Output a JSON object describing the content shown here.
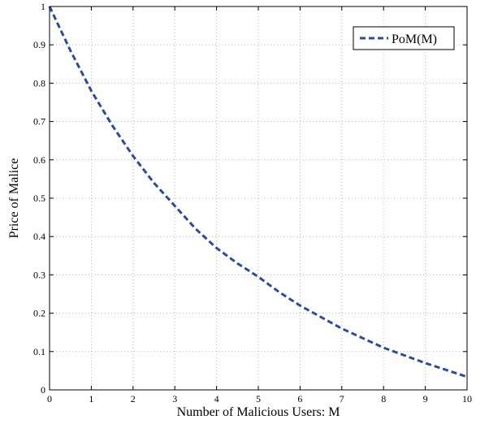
{
  "chart_data": {
    "type": "line",
    "title": "",
    "xlabel": "Number of Malicious Users: M",
    "ylabel": "Price of Malice",
    "xlim": [
      0,
      10
    ],
    "ylim": [
      0,
      1
    ],
    "xticks": [
      0,
      1,
      2,
      3,
      4,
      5,
      6,
      7,
      8,
      9,
      10
    ],
    "yticks": [
      0,
      0.1,
      0.2,
      0.3,
      0.4,
      0.5,
      0.6,
      0.7,
      0.8,
      0.9,
      1
    ],
    "grid": true,
    "legend_position": "top-right",
    "series": [
      {
        "name": "PoM(M)",
        "color": "#2b4b9b",
        "line_style": "dashed",
        "x": [
          0,
          0.5,
          1,
          1.5,
          2,
          2.5,
          3,
          3.5,
          4,
          4.5,
          5,
          5.5,
          6,
          6.5,
          7,
          7.5,
          8,
          8.5,
          9,
          9.5,
          10
        ],
        "y": [
          1.0,
          0.885,
          0.78,
          0.69,
          0.61,
          0.54,
          0.48,
          0.42,
          0.37,
          0.33,
          0.295,
          0.255,
          0.22,
          0.19,
          0.16,
          0.135,
          0.11,
          0.09,
          0.07,
          0.052,
          0.034
        ]
      }
    ]
  }
}
